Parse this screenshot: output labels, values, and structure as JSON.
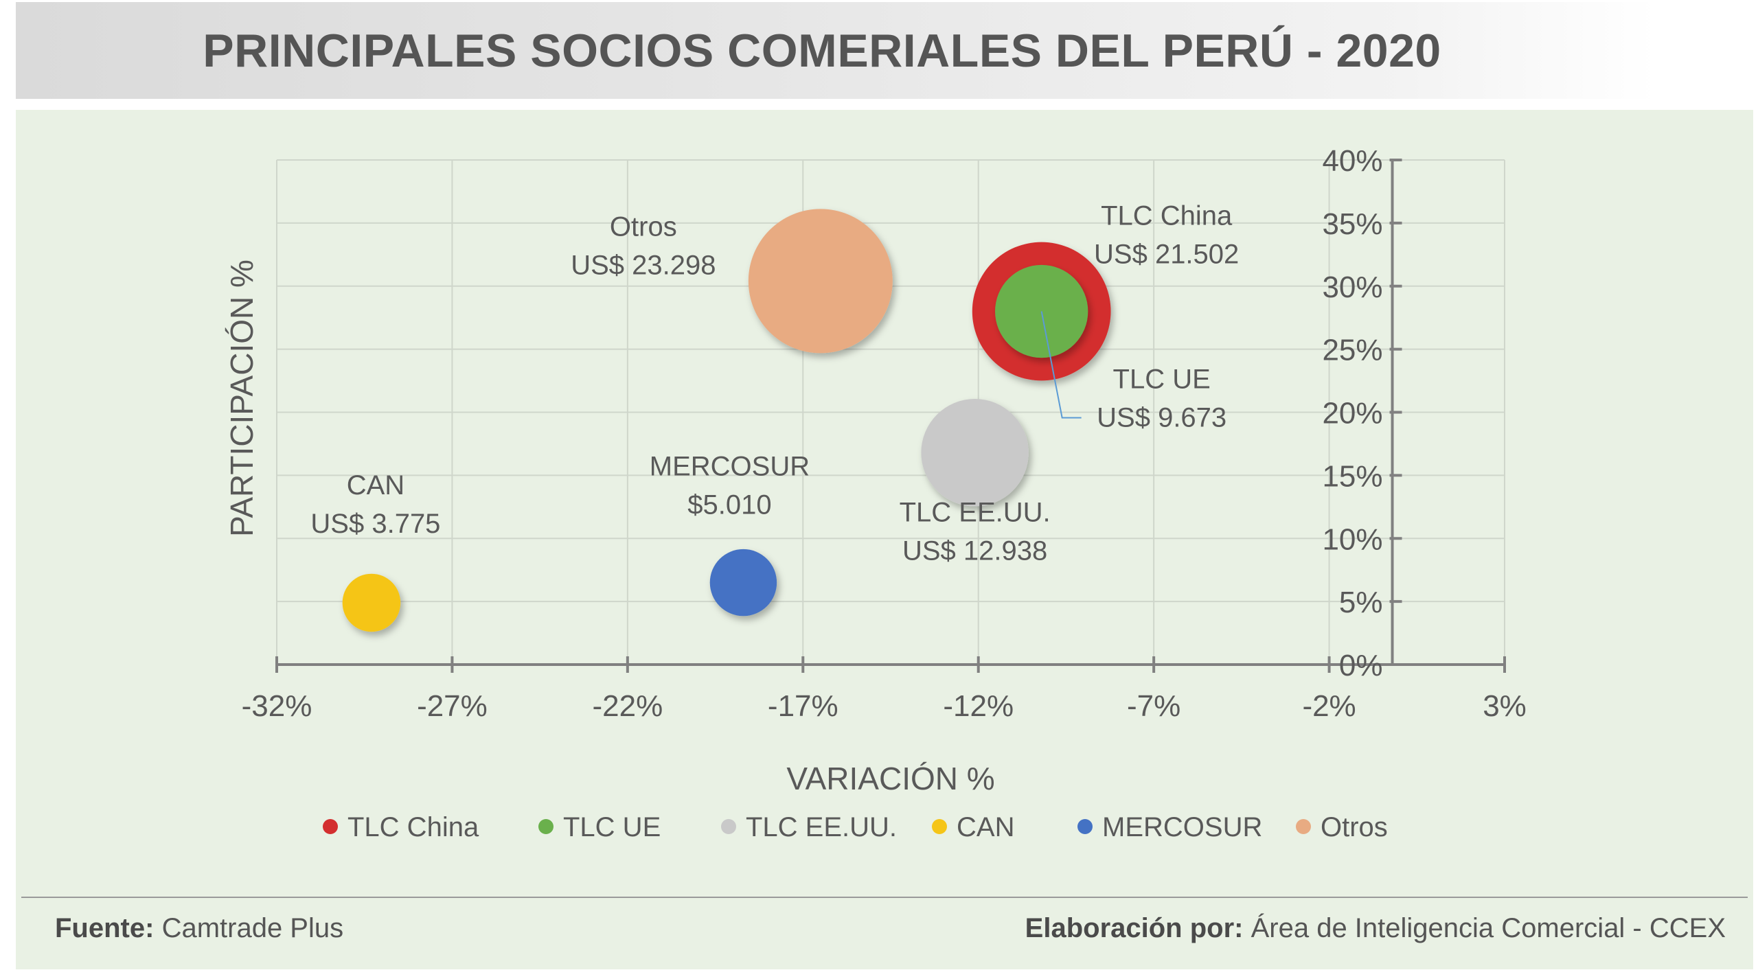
{
  "title": "PRINCIPALES SOCIOS COMERIALES DEL PERÚ - 2020",
  "chart_data": {
    "type": "scatter",
    "subtype": "bubble",
    "xlabel": "VARIACIÓN %",
    "ylabel": "PARTICIPACIÓN %",
    "xlim": [
      -32,
      3
    ],
    "ylim": [
      0,
      40
    ],
    "x_ticks": [
      "-32%",
      "-27%",
      "-22%",
      "-17%",
      "-12%",
      "-7%",
      "-2%",
      "3%"
    ],
    "x_tick_values": [
      -32,
      -27,
      -22,
      -17,
      -12,
      -7,
      -2,
      3
    ],
    "y_ticks": [
      "0%",
      "5%",
      "10%",
      "15%",
      "20%",
      "25%",
      "30%",
      "35%",
      "40%"
    ],
    "y_tick_values": [
      0,
      5,
      10,
      15,
      20,
      25,
      30,
      35,
      40
    ],
    "y_axis_crosses_x": -0.2,
    "grid": true,
    "legend_position": "bottom",
    "series": [
      {
        "name": "TLC China",
        "x": -10.2,
        "y": 28.0,
        "size": 21502,
        "color": "#d32f2f"
      },
      {
        "name": "TLC UE",
        "x": -10.2,
        "y": 28.0,
        "size": 9673,
        "color": "#6ab04c"
      },
      {
        "name": "TLC EE.UU.",
        "x": -12.1,
        "y": 16.8,
        "size": 12938,
        "color": "#c9c9c9"
      },
      {
        "name": "CAN",
        "x": -29.3,
        "y": 4.9,
        "size": 3775,
        "color": "#f5c518"
      },
      {
        "name": "MERCOSUR",
        "x": -18.7,
        "y": 6.5,
        "size": 5010,
        "color": "#4472c4"
      },
      {
        "name": "Otros",
        "x": -16.5,
        "y": 30.4,
        "size": 23298,
        "color": "#e8ab82"
      }
    ],
    "annotations": [
      {
        "series": "TLC China",
        "line1": "TLC China",
        "line2": "US$ 21.502"
      },
      {
        "series": "TLC UE",
        "line1": "TLC UE",
        "line2": "US$ 9.673"
      },
      {
        "series": "TLC EE.UU.",
        "line1": "TLC EE.UU.",
        "line2": "US$ 12.938"
      },
      {
        "series": "CAN",
        "line1": "CAN",
        "line2": "US$ 3.775"
      },
      {
        "series": "MERCOSUR",
        "line1": "MERCOSUR",
        "line2": "$5.010"
      },
      {
        "series": "Otros",
        "line1": "Otros",
        "line2": "US$ 23.298"
      }
    ]
  },
  "footer": {
    "source_label": "Fuente:",
    "source_value": "Camtrade Plus",
    "credit_label": "Elaboración por:",
    "credit_value": "Área de Inteligencia Comercial - CCEX"
  }
}
